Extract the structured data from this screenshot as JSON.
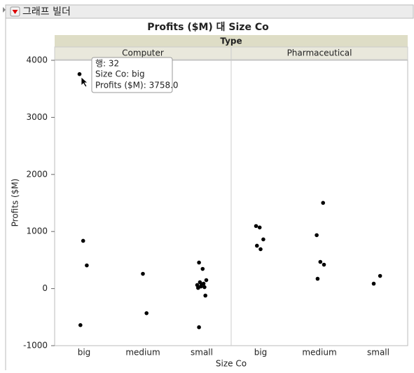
{
  "window_title": "그래프 빌더",
  "chart_data": {
    "type": "strip",
    "title": "Profits ($M) 대 Size Co",
    "facet_label": "Type",
    "x_label": "Size Co",
    "y_label": "Profits ($M)",
    "categories": [
      "big",
      "medium",
      "small"
    ],
    "ylim": [
      -1000,
      4000
    ],
    "yticks": [
      -1000,
      0,
      1000,
      2000,
      3000,
      4000
    ],
    "color": "#000000",
    "panels": [
      {
        "name": "Computer",
        "points": {
          "category": [
            0,
            0,
            0,
            0,
            1,
            1,
            2,
            2,
            2,
            2,
            2,
            2,
            2,
            2,
            2,
            2,
            2,
            2
          ],
          "values": [
            3758,
            837,
            406,
            -640,
            259,
            -431,
            456,
            345,
            148,
            111,
            86,
            62,
            37,
            25,
            12,
            74,
            -123,
            -677
          ]
        }
      },
      {
        "name": "Pharmaceutical",
        "points": {
          "category": [
            0,
            0,
            0,
            0,
            0,
            1,
            1,
            1,
            1,
            1,
            2,
            2
          ],
          "values": [
            1096,
            1071,
            862,
            751,
            690,
            1502,
            936,
            468,
            419,
            172,
            222,
            86
          ]
        }
      }
    ]
  },
  "tooltip": {
    "lines": [
      "행: 32",
      "Size Co: big",
      "Profits ($M): 3758.0"
    ]
  }
}
